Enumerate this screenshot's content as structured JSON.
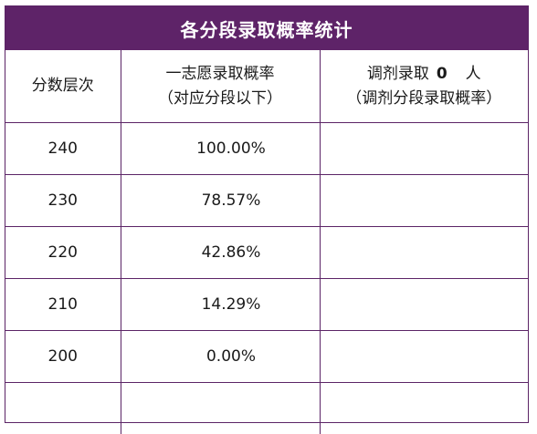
{
  "title": "各分段录取概率统计",
  "headers": {
    "col1": "分数层次",
    "col2_line1": "一志愿录取概率",
    "col2_line2": "（对应分段以下）",
    "col3_prefix": "调剂录取",
    "col3_count": "0",
    "col3_suffix": "人",
    "col3_line2": "（调剂分段录取概率）"
  },
  "rows": [
    {
      "score": "240",
      "rate": "100.00%",
      "adjust": ""
    },
    {
      "score": "230",
      "rate": "78.57%",
      "adjust": ""
    },
    {
      "score": "220",
      "rate": "42.86%",
      "adjust": ""
    },
    {
      "score": "210",
      "rate": "14.29%",
      "adjust": ""
    },
    {
      "score": "200",
      "rate": "0.00%",
      "adjust": ""
    },
    {
      "score": "",
      "rate": "",
      "adjust": ""
    }
  ],
  "colors": {
    "header_bg": "#5e2368",
    "border": "#5b2466"
  }
}
